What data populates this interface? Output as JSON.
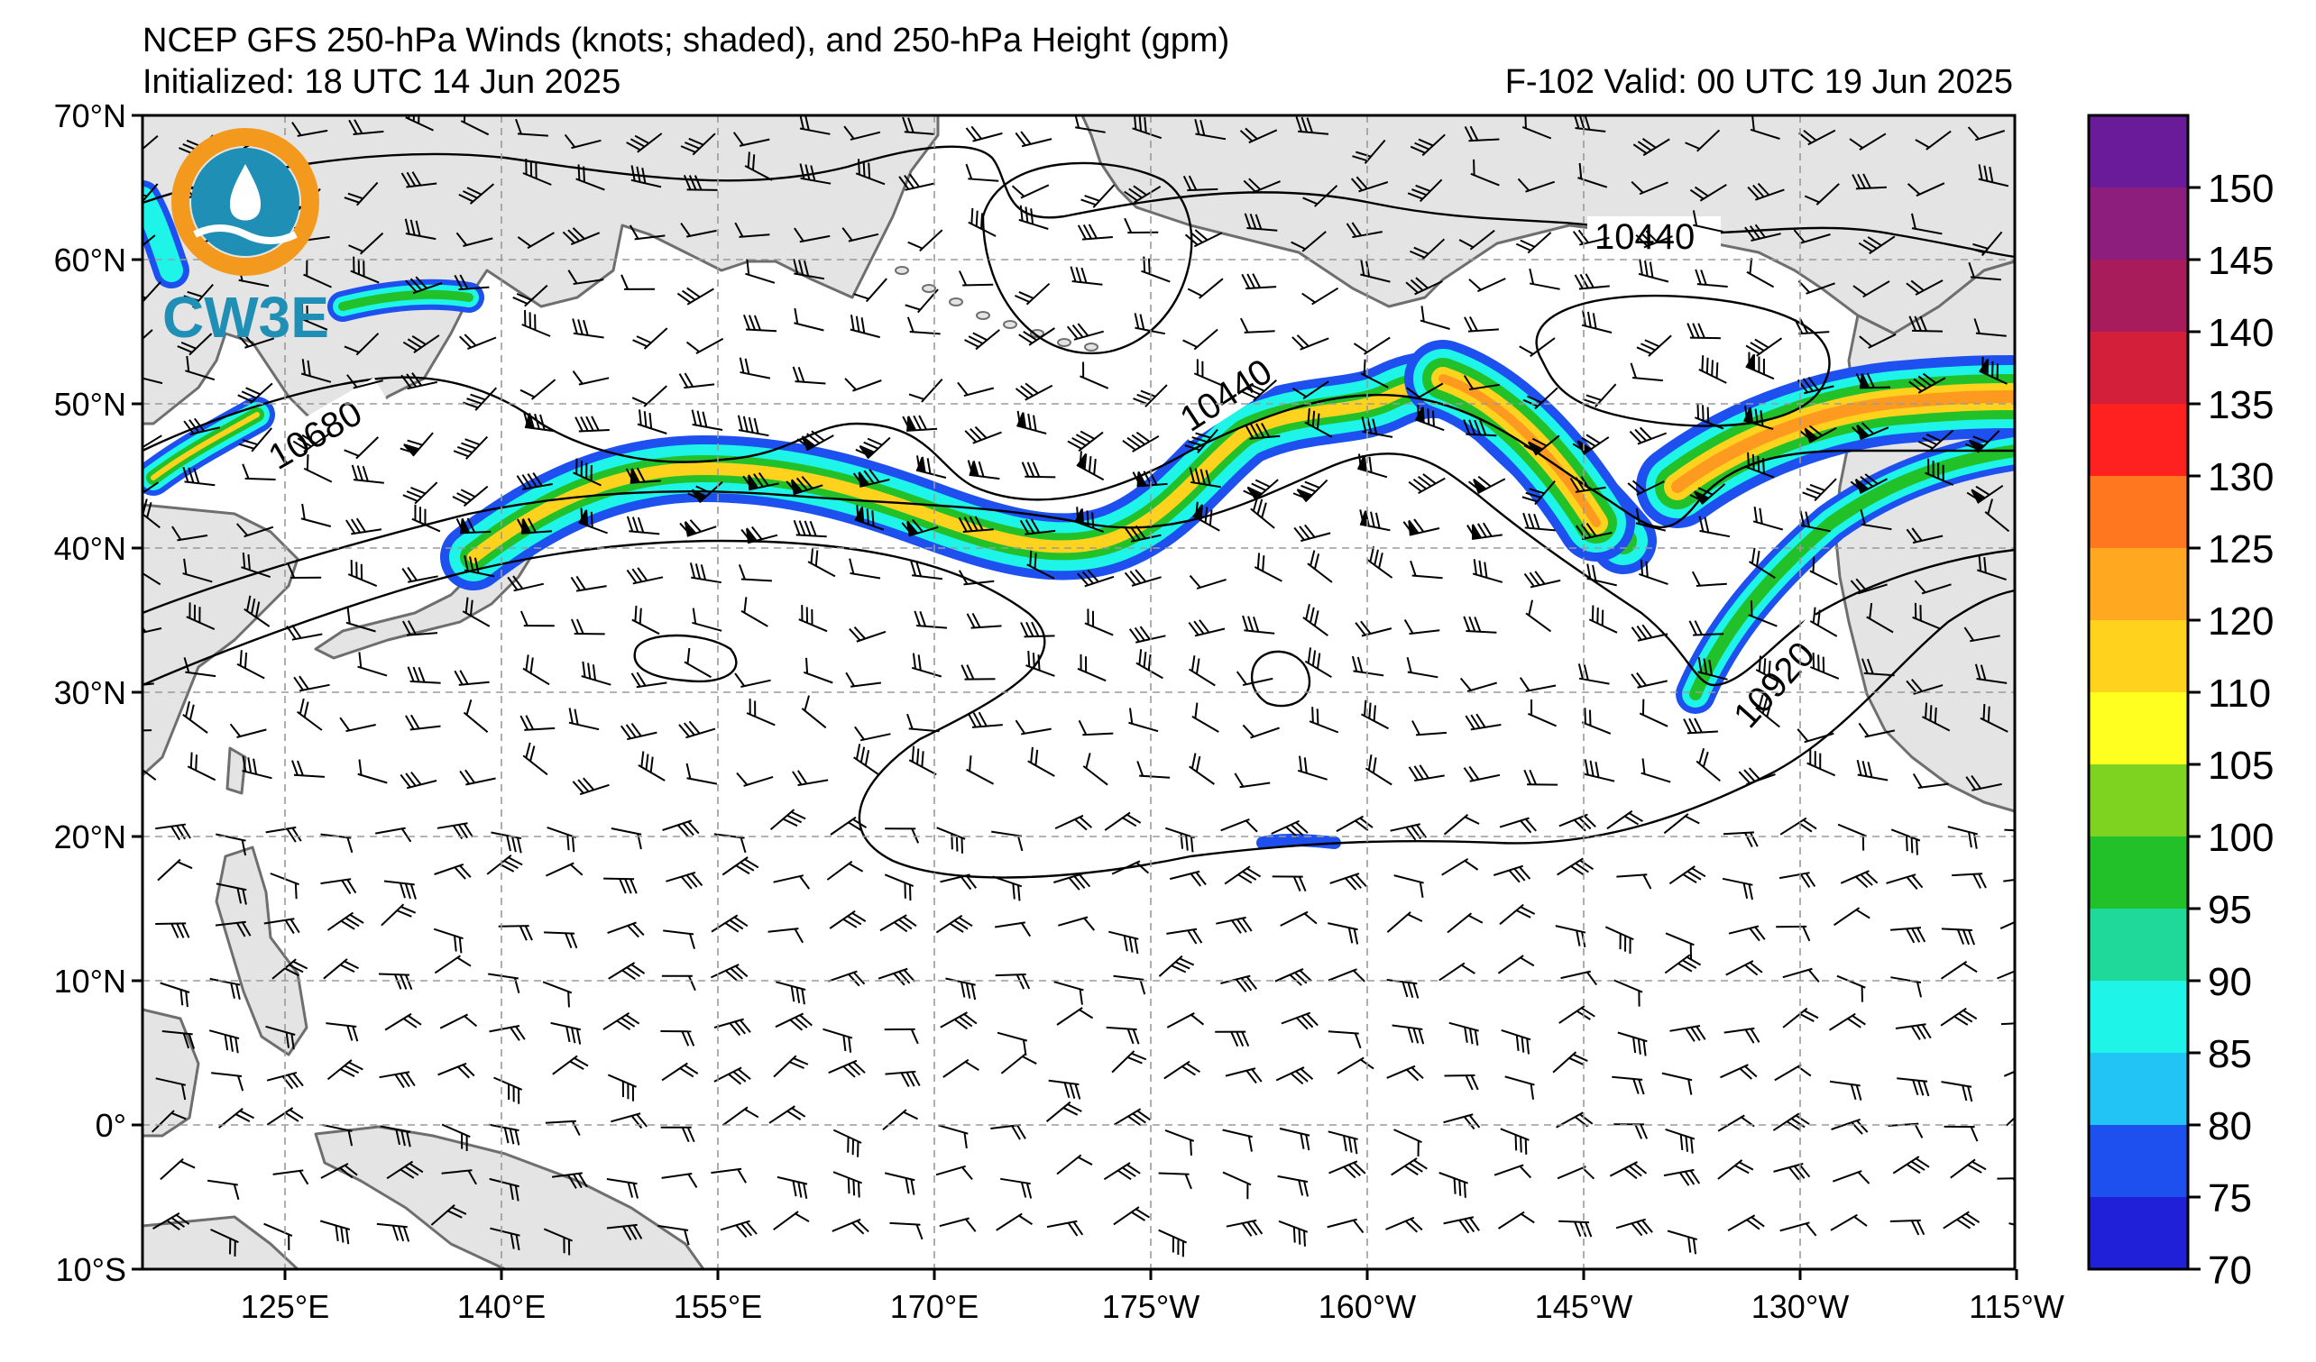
{
  "title": "NCEP GFS 250-hPa Winds (knots; shaded), and 250-hPa Height (gpm)",
  "initialized": "Initialized: 18 UTC 14 Jun 2025",
  "valid": "F-102  Valid: 00 UTC 19 Jun 2025",
  "logo": {
    "text": "CW3E",
    "ring_color": "#f39a1e",
    "wave_color": "#1f8fb5"
  },
  "lat_labels": [
    "70°N",
    "60°N",
    "50°N",
    "40°N",
    "30°N",
    "20°N",
    "10°N",
    "0°",
    "10°S"
  ],
  "lon_labels": [
    "125°E",
    "140°E",
    "155°E",
    "170°E",
    "175°W",
    "160°W",
    "145°W",
    "130°W",
    "115°W"
  ],
  "contour_labels": [
    "10440",
    "10440",
    "10680",
    "10920"
  ],
  "colorbar": {
    "levels": [
      "150",
      "145",
      "140",
      "135",
      "130",
      "125",
      "120",
      "110",
      "105",
      "100",
      "95",
      "90",
      "85",
      "80",
      "75",
      "70"
    ],
    "colors": [
      "#6a1b9a",
      "#8e1e7d",
      "#a81c5c",
      "#d41f3a",
      "#ff2020",
      "#ff7820",
      "#ffa820",
      "#ffd21e",
      "#ffff20",
      "#7ed321",
      "#22c12a",
      "#1fd99b",
      "#1ef5e8",
      "#22c3f5",
      "#1e50f0",
      "#2020d8"
    ]
  },
  "colors": {
    "land": "#e4e4e4",
    "coast": "#6e6e6e",
    "grid": "#9a9a9a",
    "jet_blue": "#1e50f0",
    "jet_cyan": "#1ef5e8",
    "jet_green": "#22c12a",
    "jet_yellow": "#ffd21e",
    "jet_orange": "#ff9a20"
  }
}
